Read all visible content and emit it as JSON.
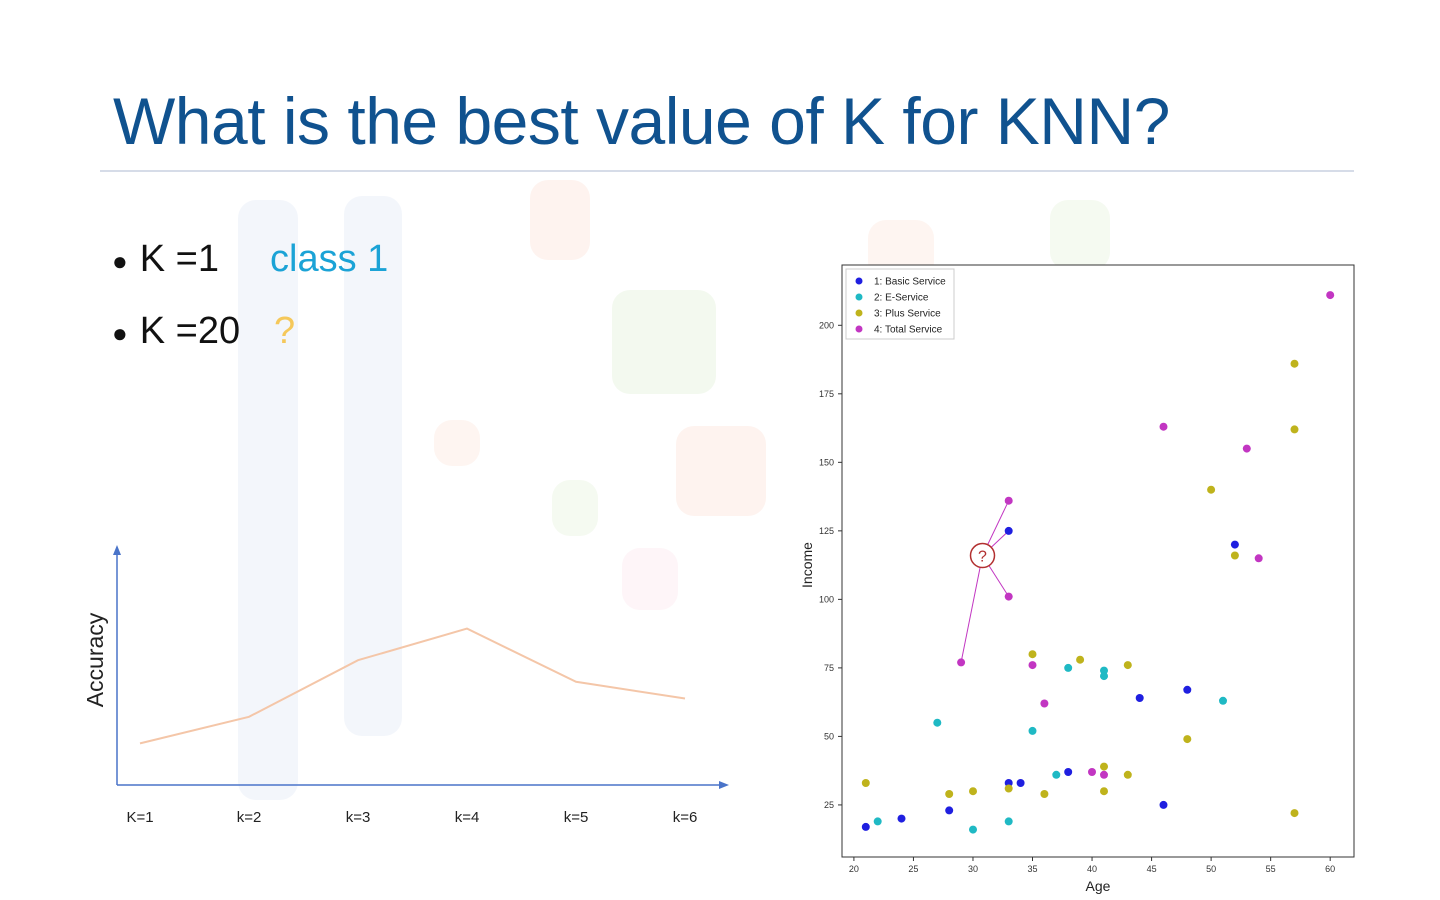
{
  "slide": {
    "title": "What is the best value of K for KNN?",
    "bullets": [
      {
        "label": "K =1",
        "answer": "class 1"
      },
      {
        "label": "K =20",
        "answer": "?"
      }
    ],
    "query_marker": "?"
  },
  "colors": {
    "title": "#10528f",
    "class_answer": "#1ba3d6",
    "question_answer": "#f5c85a",
    "accuracy_line": "#f4c6a8",
    "axis_arrow": "#4a74c9",
    "basic_service": "#1f1fe0",
    "e_service": "#1fb9c4",
    "plus_service": "#bfb31c",
    "total_service": "#c236c2"
  },
  "chart_data": [
    {
      "type": "line",
      "title": "",
      "xlabel": "",
      "ylabel": "Accuracy",
      "categories": [
        "K=1",
        "k=2",
        "k=3",
        "k=4",
        "k=5",
        "k=6"
      ],
      "values": [
        0.25,
        0.41,
        0.75,
        0.94,
        0.62,
        0.52
      ],
      "ylim": [
        0,
        1.4
      ],
      "grid": false
    },
    {
      "type": "scatter",
      "title": "",
      "xlabel": "Age",
      "ylabel": "Income",
      "xlim": [
        19,
        62
      ],
      "ylim": [
        6,
        222
      ],
      "xticks": [
        20,
        25,
        30,
        35,
        40,
        45,
        50,
        55,
        60
      ],
      "yticks": [
        25,
        50,
        75,
        100,
        125,
        150,
        175,
        200
      ],
      "legend": "top-left",
      "series": [
        {
          "name": "1: Basic Service",
          "color": "#1f1fe0",
          "points": [
            [
              21,
              17
            ],
            [
              24,
              20
            ],
            [
              28,
              23
            ],
            [
              33,
              33
            ],
            [
              34,
              33
            ],
            [
              38,
              37
            ],
            [
              44,
              64
            ],
            [
              46,
              25
            ],
            [
              48,
              67
            ],
            [
              52,
              120
            ],
            [
              33,
              125
            ]
          ]
        },
        {
          "name": "2: E-Service",
          "color": "#1fb9c4",
          "points": [
            [
              22,
              19
            ],
            [
              27,
              55
            ],
            [
              30,
              16
            ],
            [
              33,
              19
            ],
            [
              35,
              52
            ],
            [
              37,
              36
            ],
            [
              38,
              75
            ],
            [
              41,
              74
            ],
            [
              41,
              72
            ],
            [
              51,
              63
            ]
          ]
        },
        {
          "name": "3: Plus Service",
          "color": "#bfb31c",
          "points": [
            [
              21,
              33
            ],
            [
              28,
              29
            ],
            [
              30,
              30
            ],
            [
              33,
              31
            ],
            [
              35,
              80
            ],
            [
              36,
              29
            ],
            [
              39,
              78
            ],
            [
              41,
              30
            ],
            [
              41,
              39
            ],
            [
              43,
              76
            ],
            [
              43,
              36
            ],
            [
              48,
              49
            ],
            [
              50,
              140
            ],
            [
              52,
              116
            ],
            [
              57,
              186
            ],
            [
              57,
              162
            ],
            [
              57,
              22
            ]
          ]
        },
        {
          "name": "4: Total Service",
          "color": "#c236c2",
          "points": [
            [
              29,
              77
            ],
            [
              33,
              136
            ],
            [
              33,
              101
            ],
            [
              35,
              76
            ],
            [
              36,
              62
            ],
            [
              40,
              37
            ],
            [
              41,
              36
            ],
            [
              46,
              163
            ],
            [
              53,
              155
            ],
            [
              54,
              115
            ],
            [
              60,
              211
            ]
          ]
        }
      ],
      "query_point": [
        30.8,
        116
      ]
    }
  ]
}
